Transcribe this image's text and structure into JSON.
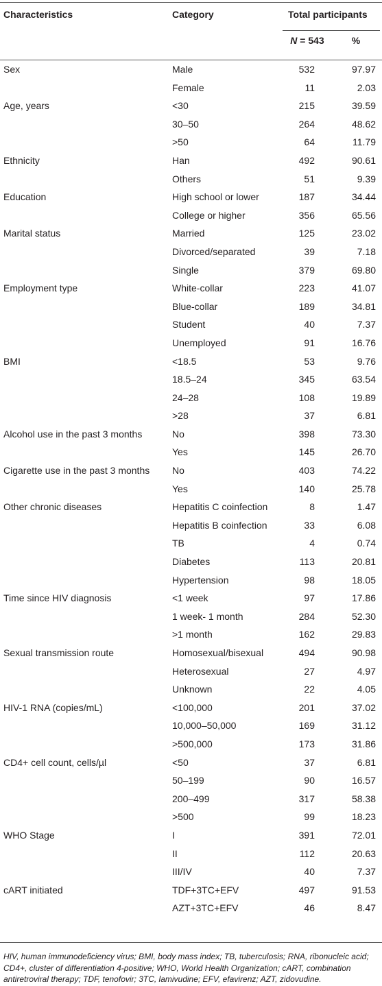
{
  "header": {
    "characteristics": "Characteristics",
    "category": "Category",
    "total": "Total participants",
    "n_label": "N",
    "n_value": " = 543",
    "pct": "%"
  },
  "rows": [
    {
      "char": "Sex",
      "cat": "Male",
      "n": "532",
      "pct": "97.97"
    },
    {
      "char": "",
      "cat": "Female",
      "n": "11",
      "pct": "2.03"
    },
    {
      "char": "Age, years",
      "cat": "<30",
      "n": "215",
      "pct": "39.59"
    },
    {
      "char": "",
      "cat": "30–50",
      "n": "264",
      "pct": "48.62"
    },
    {
      "char": "",
      "cat": ">50",
      "n": "64",
      "pct": "11.79"
    },
    {
      "char": "Ethnicity",
      "cat": "Han",
      "n": "492",
      "pct": "90.61"
    },
    {
      "char": "",
      "cat": "Others",
      "n": "51",
      "pct": "9.39"
    },
    {
      "char": "Education",
      "cat": "High school or lower",
      "n": "187",
      "pct": "34.44"
    },
    {
      "char": "",
      "cat": "College or higher",
      "n": "356",
      "pct": "65.56"
    },
    {
      "char": "Marital status",
      "cat": "Married",
      "n": "125",
      "pct": "23.02"
    },
    {
      "char": "",
      "cat": "Divorced/separated",
      "n": "39",
      "pct": "7.18"
    },
    {
      "char": "",
      "cat": "Single",
      "n": "379",
      "pct": "69.80"
    },
    {
      "char": "Employment type",
      "cat": "White-collar",
      "n": "223",
      "pct": "41.07"
    },
    {
      "char": "",
      "cat": "Blue-collar",
      "n": "189",
      "pct": "34.81"
    },
    {
      "char": "",
      "cat": "Student",
      "n": "40",
      "pct": "7.37"
    },
    {
      "char": "",
      "cat": "Unemployed",
      "n": "91",
      "pct": "16.76"
    },
    {
      "char": "BMI",
      "cat": "<18.5",
      "n": "53",
      "pct": "9.76"
    },
    {
      "char": "",
      "cat": "18.5–24",
      "n": "345",
      "pct": "63.54"
    },
    {
      "char": "",
      "cat": "24–28",
      "n": "108",
      "pct": "19.89"
    },
    {
      "char": "",
      "cat": ">28",
      "n": "37",
      "pct": "6.81"
    },
    {
      "char": "Alcohol use in the past 3 months",
      "cat": "No",
      "n": "398",
      "pct": "73.30"
    },
    {
      "char": "",
      "cat": "Yes",
      "n": "145",
      "pct": "26.70"
    },
    {
      "char": "Cigarette use in the past 3 months",
      "cat": "No",
      "n": "403",
      "pct": "74.22"
    },
    {
      "char": "",
      "cat": "Yes",
      "n": "140",
      "pct": "25.78"
    },
    {
      "char": "Other chronic diseases",
      "cat": "Hepatitis C coinfection",
      "n": "8",
      "pct": "1.47"
    },
    {
      "char": "",
      "cat": "Hepatitis B coinfection",
      "n": "33",
      "pct": "6.08"
    },
    {
      "char": "",
      "cat": "TB",
      "n": "4",
      "pct": "0.74"
    },
    {
      "char": "",
      "cat": "Diabetes",
      "n": "113",
      "pct": "20.81"
    },
    {
      "char": "",
      "cat": "Hypertension",
      "n": "98",
      "pct": "18.05"
    },
    {
      "char": "Time since HIV diagnosis",
      "cat": "<1 week",
      "n": "97",
      "pct": "17.86"
    },
    {
      "char": "",
      "cat": "1 week- 1 month",
      "n": "284",
      "pct": "52.30"
    },
    {
      "char": "",
      "cat": ">1 month",
      "n": "162",
      "pct": "29.83"
    },
    {
      "char": "Sexual transmission route",
      "cat": "Homosexual/bisexual",
      "n": "494",
      "pct": "90.98"
    },
    {
      "char": "",
      "cat": "Heterosexual",
      "n": "27",
      "pct": "4.97"
    },
    {
      "char": "",
      "cat": "Unknown",
      "n": "22",
      "pct": "4.05"
    },
    {
      "char": "HIV-1 RNA (copies/mL)",
      "cat": "<100,000",
      "n": "201",
      "pct": "37.02"
    },
    {
      "char": "",
      "cat": "10,000–50,000",
      "n": "169",
      "pct": "31.12"
    },
    {
      "char": "",
      "cat": ">500,000",
      "n": "173",
      "pct": "31.86"
    },
    {
      "char": "CD4+ cell count, cells/µl",
      "cat": "<50",
      "n": "37",
      "pct": "6.81"
    },
    {
      "char": "",
      "cat": "50–199",
      "n": "90",
      "pct": "16.57"
    },
    {
      "char": "",
      "cat": "200–499",
      "n": "317",
      "pct": "58.38"
    },
    {
      "char": "",
      "cat": ">500",
      "n": "99",
      "pct": "18.23"
    },
    {
      "char": "WHO Stage",
      "cat": "I",
      "n": "391",
      "pct": "72.01"
    },
    {
      "char": "",
      "cat": "II",
      "n": "112",
      "pct": "20.63"
    },
    {
      "char": "",
      "cat": "III/IV",
      "n": "40",
      "pct": "7.37"
    },
    {
      "char": "cART initiated",
      "cat": "TDF+3TC+EFV",
      "n": "497",
      "pct": "91.53"
    },
    {
      "char": "",
      "cat": "AZT+3TC+EFV",
      "n": "46",
      "pct": "8.47"
    }
  ],
  "footnote": "HIV, human immunodeficiency virus; BMI, body mass index; TB, tuberculosis; RNA, ribonucleic acid; CD4+, cluster of differentiation 4-positive; WHO, World Health Organization; cART, combination antiretroviral therapy; TDF, tenofovir; 3TC, lamivudine; EFV, efavirenz; AZT, zidovudine."
}
